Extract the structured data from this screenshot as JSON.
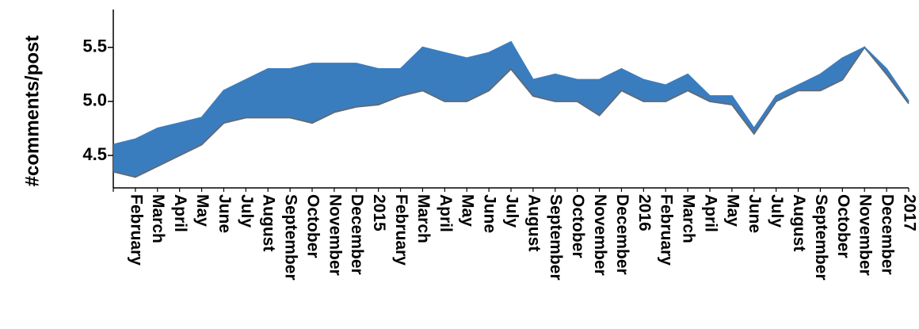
{
  "chart_data": {
    "type": "band",
    "y_label": "#comments/post",
    "categories": [
      null,
      "February",
      "March",
      "April",
      "May",
      "June",
      "July",
      "August",
      "September",
      "October",
      "November",
      "December",
      "2015",
      "February",
      "March",
      "April",
      "May",
      "June",
      "July",
      "August",
      "September",
      "October",
      "November",
      "December",
      "2016",
      "February",
      "March",
      "April",
      "May",
      "June",
      "July",
      "August",
      "September",
      "October",
      "November",
      "December",
      "2017"
    ],
    "series": [
      {
        "color": "#5f6b78",
        "values": [
          4.35,
          4.3,
          4.4,
          4.5,
          4.6,
          4.8,
          4.85,
          4.85,
          4.85,
          4.8,
          4.9,
          4.95,
          4.97,
          5.05,
          5.1,
          5.0,
          5.0,
          5.1,
          5.3,
          5.05,
          5.0,
          5.0,
          4.87,
          5.1,
          5.0,
          5.0,
          5.1,
          5.0,
          4.97,
          4.7,
          5.0,
          5.1,
          5.1,
          5.2,
          5.5,
          5.25,
          4.98
        ]
      },
      {
        "color": "#3a7dbf",
        "values": [
          4.6,
          4.65,
          4.75,
          4.8,
          4.85,
          5.1,
          5.2,
          5.3,
          5.3,
          5.35,
          5.35,
          5.35,
          5.3,
          5.3,
          5.5,
          5.45,
          5.4,
          5.45,
          5.55,
          5.2,
          5.25,
          5.2,
          5.2,
          5.3,
          5.2,
          5.15,
          5.25,
          5.05,
          5.05,
          4.75,
          5.05,
          5.15,
          5.25,
          5.4,
          5.5,
          5.3,
          5.0
        ]
      }
    ],
    "fill": "#3a7dbf",
    "ylim": [
      4.2,
      5.85
    ],
    "yticks": [
      4.5,
      {
        "value": 5,
        "label": "5.0"
      },
      5.5
    ]
  }
}
